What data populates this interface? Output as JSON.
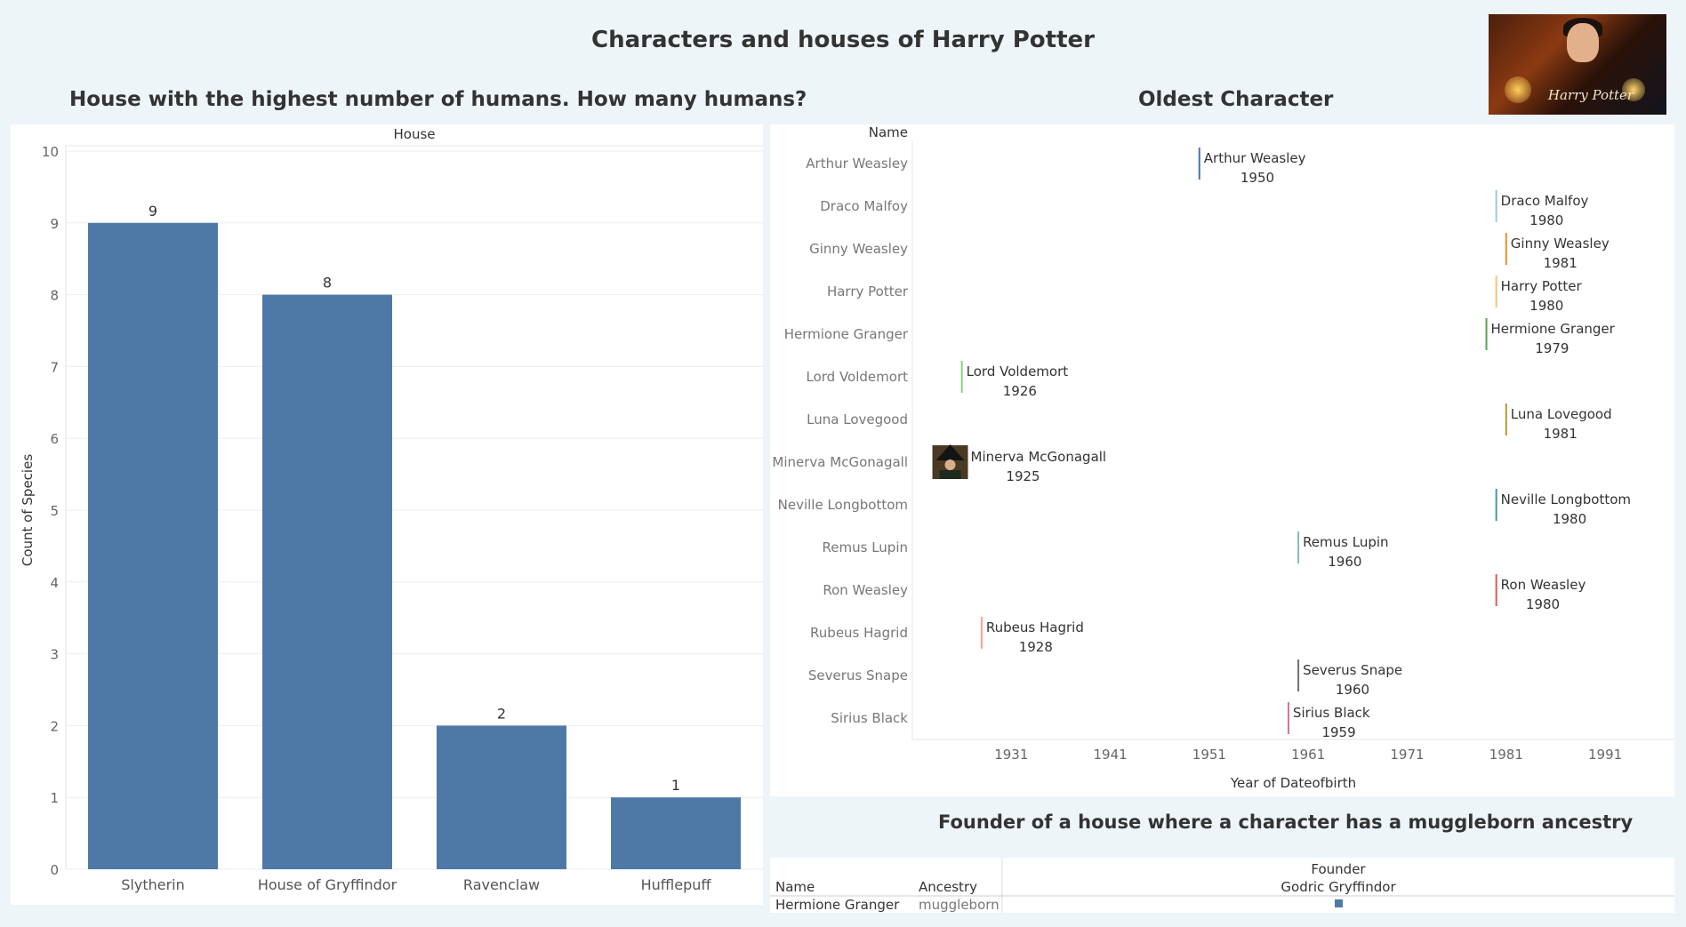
{
  "dashboard": {
    "title": "Characters and houses of Harry Potter",
    "poster_text": "Harry Potter"
  },
  "chart_data": [
    {
      "type": "bar",
      "title": "House with the highest number of humans. How many humans?",
      "column_header": "House",
      "categories": [
        "Slytherin",
        "House of Gryffindor",
        "Ravenclaw",
        "Hufflepuff"
      ],
      "values": [
        9,
        8,
        2,
        1
      ],
      "ylabel": "Count of Species",
      "ylim": [
        0,
        10
      ],
      "yticks": [
        0,
        1,
        2,
        3,
        4,
        5,
        6,
        7,
        8,
        9,
        10
      ],
      "bar_color": "#4e79a7",
      "grid": true
    },
    {
      "type": "scatter",
      "title": "Oldest Character",
      "row_header": "Name",
      "xlabel": "Year of Dateofbirth",
      "xlim": [
        1921,
        1998
      ],
      "xticks": [
        1931,
        1941,
        1951,
        1961,
        1971,
        1981,
        1991
      ],
      "points": [
        {
          "name": "Arthur Weasley",
          "year": 1950,
          "color": "#4e6fb3"
        },
        {
          "name": "Draco Malfoy",
          "year": 1980,
          "color": "#9ecae1"
        },
        {
          "name": "Ginny Weasley",
          "year": 1981,
          "color": "#f28e2b"
        },
        {
          "name": "Harry Potter",
          "year": 1980,
          "color": "#ffbe7d"
        },
        {
          "name": "Hermione Granger",
          "year": 1979,
          "color": "#59a14f"
        },
        {
          "name": "Lord Voldemort",
          "year": 1926,
          "color": "#8cd17d"
        },
        {
          "name": "Luna Lovegood",
          "year": 1981,
          "color": "#b6992d"
        },
        {
          "name": "Minerva McGonagall",
          "year": 1925,
          "color": "#6b4e2e",
          "image": true
        },
        {
          "name": "Neville Longbottom",
          "year": 1980,
          "color": "#499894"
        },
        {
          "name": "Remus Lupin",
          "year": 1960,
          "color": "#86bcb6"
        },
        {
          "name": "Ron Weasley",
          "year": 1980,
          "color": "#e15759"
        },
        {
          "name": "Rubeus Hagrid",
          "year": 1928,
          "color": "#ff9d9a"
        },
        {
          "name": "Severus Snape",
          "year": 1960,
          "color": "#79706e"
        },
        {
          "name": "Sirius Black",
          "year": 1959,
          "color": "#d37295"
        }
      ]
    },
    {
      "type": "table",
      "title": "Founder of a house where a character has a muggleborn ancestry",
      "headers": {
        "name": "Name",
        "ancestry": "Ancestry",
        "founder_label": "Founder",
        "founder_value": "Godric Gryffindor"
      },
      "rows": [
        {
          "name": "Hermione Granger",
          "ancestry": "muggleborn",
          "mark_color": "#4e79a7"
        }
      ]
    }
  ]
}
